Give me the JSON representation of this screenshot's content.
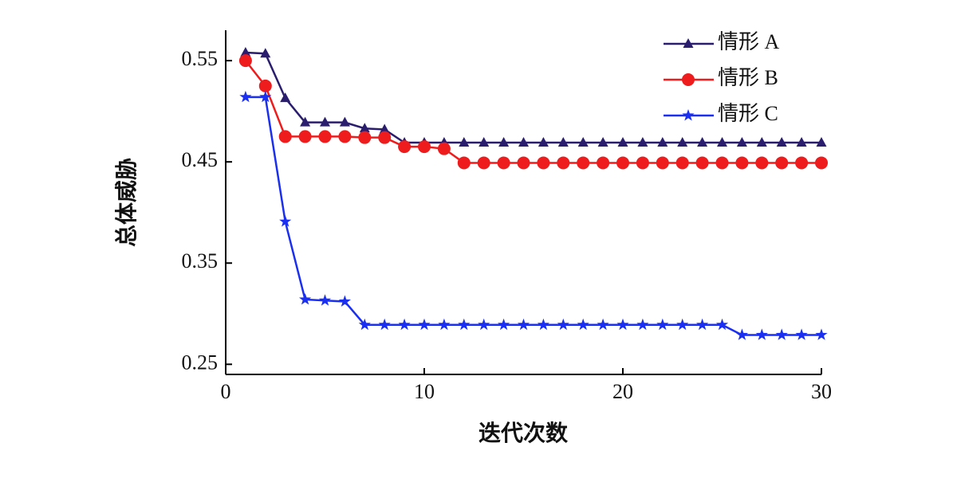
{
  "chart_data": {
    "type": "line",
    "x_label": "迭代次数",
    "y_label": "总体威胁",
    "x": [
      1,
      2,
      3,
      4,
      5,
      6,
      7,
      8,
      9,
      10,
      11,
      12,
      13,
      14,
      15,
      16,
      17,
      18,
      19,
      20,
      21,
      22,
      23,
      24,
      25,
      26,
      27,
      28,
      29,
      30
    ],
    "series": [
      {
        "name": "情形 A",
        "color": "#2b1d6e",
        "marker": "triangle",
        "values": [
          0.558,
          0.557,
          0.513,
          0.489,
          0.489,
          0.489,
          0.483,
          0.482,
          0.469,
          0.469,
          0.469,
          0.469,
          0.469,
          0.469,
          0.469,
          0.469,
          0.469,
          0.469,
          0.469,
          0.469,
          0.469,
          0.469,
          0.469,
          0.469,
          0.469,
          0.469,
          0.469,
          0.469,
          0.469,
          0.469
        ]
      },
      {
        "name": "情形 B",
        "color": "#ee1c1c",
        "marker": "circle",
        "values": [
          0.55,
          0.525,
          0.475,
          0.475,
          0.475,
          0.475,
          0.474,
          0.474,
          0.465,
          0.465,
          0.463,
          0.449,
          0.449,
          0.449,
          0.449,
          0.449,
          0.449,
          0.449,
          0.449,
          0.449,
          0.449,
          0.449,
          0.449,
          0.449,
          0.449,
          0.449,
          0.449,
          0.449,
          0.449,
          0.449
        ]
      },
      {
        "name": "情形 C",
        "color": "#1a2ff0",
        "marker": "star",
        "values": [
          0.514,
          0.514,
          0.391,
          0.314,
          0.313,
          0.312,
          0.289,
          0.289,
          0.289,
          0.289,
          0.289,
          0.289,
          0.289,
          0.289,
          0.289,
          0.289,
          0.289,
          0.289,
          0.289,
          0.289,
          0.289,
          0.289,
          0.289,
          0.289,
          0.289,
          0.279,
          0.279,
          0.279,
          0.279,
          0.279
        ]
      }
    ],
    "xlim": [
      0,
      30
    ],
    "xticks": [
      0,
      10,
      20,
      30
    ],
    "ylim": [
      0.24,
      0.58
    ],
    "yticks": [
      0.25,
      0.35,
      0.45,
      0.55
    ],
    "legend": "upper right",
    "grid": false
  }
}
